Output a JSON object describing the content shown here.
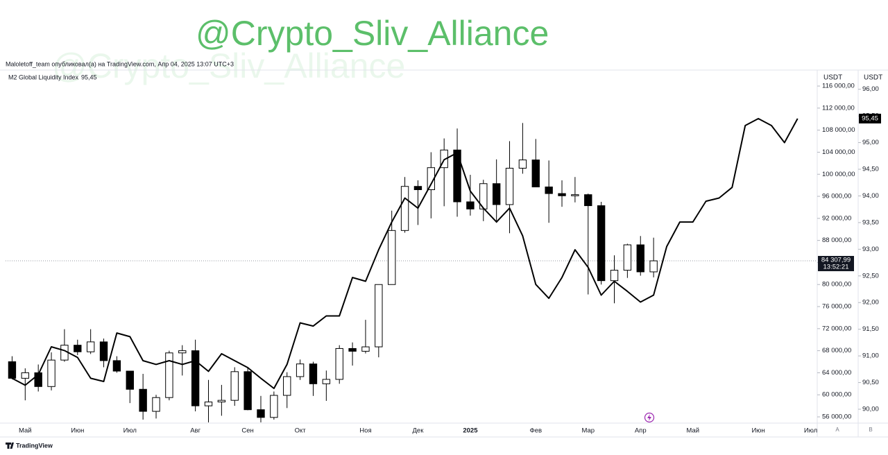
{
  "watermark": "@Crypto_Sliv_Alliance",
  "header": "Maloletoff_team опубликовал(а) на TradingView.com, Апр 04, 2025 13:07 UTC+3",
  "footer_logo": "TradingView",
  "chart_data": {
    "type": "candlestick",
    "y_unit": "USDT",
    "y2_unit": "USDT",
    "axis_buttons": [
      "A",
      "B"
    ],
    "categories": [
      null,
      "Май",
      null,
      null,
      null,
      "Июн",
      null,
      null,
      null,
      "Июл",
      null,
      null,
      null,
      null,
      "Авг",
      null,
      null,
      null,
      "Сен",
      null,
      null,
      null,
      "Окт",
      null,
      null,
      null,
      null,
      "Ноя",
      null,
      null,
      null,
      "Дек",
      null,
      null,
      null,
      "2025",
      null,
      null,
      null,
      null,
      "Фев",
      null,
      null,
      null,
      "Мар",
      null,
      null,
      null,
      "Апр",
      null,
      null,
      null,
      "Май",
      null,
      null,
      null,
      null,
      "Июн",
      null,
      null,
      null,
      "Июл"
    ],
    "ylim": [
      54870,
      118900
    ],
    "yticks": [
      {
        "value": 56000,
        "label": "56 000,00"
      },
      {
        "value": 60000,
        "label": "60 000,00"
      },
      {
        "value": 64000,
        "label": "64 000,00"
      },
      {
        "value": 68000,
        "label": "68 000,00"
      },
      {
        "value": 72000,
        "label": "72 000,00"
      },
      {
        "value": 76000,
        "label": "76 000,00"
      },
      {
        "value": 80000,
        "label": "80 000,00"
      },
      {
        "value": 84000,
        "label": "84 000,00"
      },
      {
        "value": 88000,
        "label": "88 000,00"
      },
      {
        "value": 92000,
        "label": "92 000,00"
      },
      {
        "value": 96000,
        "label": "96 000,00"
      },
      {
        "value": 100000,
        "label": "100 000,00"
      },
      {
        "value": 104000,
        "label": "104 000,00"
      },
      {
        "value": 108000,
        "label": "108 000,00"
      },
      {
        "value": 112000,
        "label": "112 000,00"
      },
      {
        "value": 116000,
        "label": "116 000,00"
      }
    ],
    "y2lim": [
      89.74,
      96.36
    ],
    "y2ticks": [
      {
        "value": 90,
        "label": "90,00"
      },
      {
        "value": 90.5,
        "label": "90,50"
      },
      {
        "value": 91,
        "label": "91,00"
      },
      {
        "value": 91.5,
        "label": "91,50"
      },
      {
        "value": 92,
        "label": "92,00"
      },
      {
        "value": 92.5,
        "label": "92,50"
      },
      {
        "value": 93,
        "label": "93,00"
      },
      {
        "value": 93.5,
        "label": "93,50"
      },
      {
        "value": 94,
        "label": "94,00"
      },
      {
        "value": 94.5,
        "label": "94,50"
      },
      {
        "value": 95,
        "label": "95,00"
      },
      {
        "value": 95.5,
        "label": "95,50"
      },
      {
        "value": 96,
        "label": "96,00"
      }
    ],
    "last_price": {
      "value": 84307.99,
      "label": "84 307,99"
    },
    "countdown": "13:52:21",
    "series": [
      {
        "type": "candlestick",
        "up_color": "#ffffff",
        "down_color": "#000000",
        "open": [
          66000,
          63000,
          64000,
          61500,
          66300,
          69000,
          67800,
          69600,
          66200,
          64300,
          61000,
          57000,
          59500,
          67600,
          68000,
          58000,
          58700,
          59000,
          64200,
          57300,
          55900,
          59900,
          63300,
          65600,
          62000,
          62800,
          68400,
          67900,
          68700,
          80000,
          89800,
          97800,
          97200,
          101200,
          104400,
          95000,
          93700,
          98300,
          94500,
          101100,
          102600,
          97700,
          96500,
          96100,
          96300,
          94300,
          80700,
          82600,
          87200,
          82300,
          null,
          null,
          null,
          null,
          null,
          null,
          null,
          null,
          null,
          null,
          null,
          null
        ],
        "high": [
          67000,
          64800,
          65500,
          67700,
          71900,
          70000,
          71900,
          70200,
          67000,
          64300,
          63800,
          60000,
          68000,
          69000,
          70000,
          62700,
          61800,
          65000,
          64900,
          59800,
          60600,
          64100,
          66400,
          66000,
          64400,
          69000,
          69500,
          73600,
          80000,
          93400,
          99500,
          98900,
          104000,
          106500,
          108300,
          99900,
          99000,
          102700,
          106000,
          109300,
          106400,
          102500,
          98900,
          99500,
          96500,
          95000,
          85300,
          87400,
          88800,
          88500,
          null,
          null,
          null,
          null,
          null,
          null,
          null,
          null,
          null,
          null,
          null,
          null
        ],
        "low": [
          62800,
          59000,
          60600,
          60800,
          66000,
          67200,
          67400,
          65000,
          64000,
          58500,
          55500,
          55700,
          59000,
          63500,
          57000,
          55000,
          56200,
          58000,
          57200,
          55000,
          55500,
          57600,
          62700,
          59800,
          58900,
          62000,
          65300,
          67500,
          66800,
          80000,
          89400,
          90800,
          92000,
          94200,
          92300,
          92500,
          91500,
          91200,
          89300,
          100100,
          97700,
          91200,
          94100,
          94900,
          78200,
          80000,
          76600,
          81200,
          81600,
          81300,
          null,
          null,
          null,
          null,
          null,
          null,
          null,
          null,
          null,
          null,
          null,
          null
        ],
        "close": [
          63000,
          64000,
          61500,
          66300,
          69000,
          67800,
          69600,
          66200,
          64300,
          61000,
          57000,
          59500,
          67600,
          68000,
          58000,
          58700,
          59000,
          64200,
          57300,
          55900,
          59900,
          63300,
          65600,
          62000,
          62800,
          68400,
          67900,
          68700,
          80000,
          89800,
          97800,
          97200,
          101200,
          104400,
          95000,
          93700,
          98300,
          94500,
          101100,
          102600,
          97700,
          96500,
          96100,
          96300,
          94300,
          80700,
          82600,
          87200,
          82300,
          84300,
          null,
          null,
          null,
          null,
          null,
          null,
          null,
          null,
          null,
          null,
          null,
          null
        ]
      },
      {
        "type": "line",
        "axis": "y2",
        "name": "M2 Global Liquidity Index",
        "color": "#000000",
        "values": [
          90.58,
          90.45,
          90.65,
          91.17,
          91.1,
          90.97,
          90.58,
          90.52,
          91.43,
          91.36,
          90.91,
          90.84,
          90.91,
          90.84,
          90.91,
          90.71,
          91.04,
          90.91,
          90.78,
          90.58,
          90.39,
          90.84,
          91.62,
          91.56,
          91.75,
          91.75,
          92.47,
          92.4,
          92.99,
          93.51,
          93.96,
          93.77,
          94.22,
          94.68,
          94.81,
          94.09,
          93.77,
          93.51,
          93.77,
          93.25,
          92.34,
          92.08,
          92.47,
          92.99,
          92.66,
          92.14,
          92.4,
          92.21,
          92.01,
          92.14,
          93.05,
          93.51,
          93.51,
          93.9,
          93.96,
          94.16,
          95.32,
          95.45,
          95.32,
          95.0,
          95.45,
          null
        ],
        "value_labels": [
          null,
          null,
          null,
          null,
          null,
          null,
          null,
          null,
          null,
          null,
          null,
          null,
          null,
          null,
          null,
          null,
          null,
          null,
          null,
          null,
          null,
          null,
          null,
          null,
          null,
          null,
          null,
          null,
          null,
          null,
          null,
          null,
          null,
          null,
          null,
          null,
          null,
          null,
          null,
          null,
          null,
          null,
          null,
          null,
          null,
          null,
          null,
          null,
          null,
          null,
          null,
          null,
          null,
          null,
          null,
          null,
          null,
          null,
          null,
          null,
          "95,45",
          null
        ]
      }
    ]
  }
}
